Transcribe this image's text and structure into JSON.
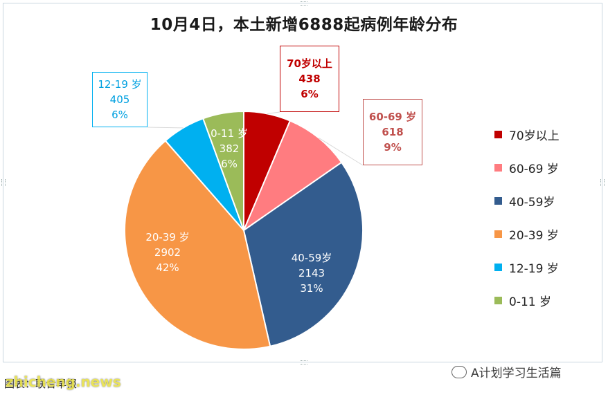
{
  "chart_data": {
    "type": "pie",
    "title": "10月4日，本土新增6888起病例年龄分布",
    "slices": [
      {
        "name": "70岁以上",
        "value": 438,
        "pct": "6%",
        "color": "#c00000",
        "label_lines": [
          "70岁以上",
          "438",
          "6%"
        ]
      },
      {
        "name": "60-69 岁",
        "value": 618,
        "pct": "9%",
        "color": "#ff7c80",
        "label_lines": [
          "60-69 岁",
          "618",
          "9%"
        ]
      },
      {
        "name": "40-59岁",
        "value": 2143,
        "pct": "31%",
        "color": "#335c8e",
        "label_lines": [
          "40-59岁",
          "2143",
          "31%"
        ]
      },
      {
        "name": "20-39 岁",
        "value": 2902,
        "pct": "42%",
        "color": "#f79646",
        "label_lines": [
          "20-39 岁",
          "2902",
          "42%"
        ]
      },
      {
        "name": "12-19 岁",
        "value": 405,
        "pct": "6%",
        "color": "#00b0f0",
        "label_lines": [
          "12-19 岁",
          "405",
          "6%"
        ]
      },
      {
        "name": "0-11 岁",
        "value": 382,
        "pct": "6%",
        "color": "#9bbb59",
        "label_lines": [
          "0-11 岁",
          "382",
          "6%"
        ]
      }
    ],
    "legend": [
      {
        "label": "70岁以上",
        "color": "#c00000"
      },
      {
        "label": "60-69 岁",
        "color": "#ff7c80"
      },
      {
        "label": "40-59岁",
        "color": "#335c8e"
      },
      {
        "label": "20-39 岁",
        "color": "#f79646"
      },
      {
        "label": "12-19 岁",
        "color": "#00b0f0"
      },
      {
        "label": "0-11 岁",
        "color": "#9bbb59"
      }
    ],
    "legend_position": "right"
  },
  "watermark": "A计划学习生活篇",
  "source_text": "图表：联合早报",
  "site_watermark": "zhicheng.news"
}
